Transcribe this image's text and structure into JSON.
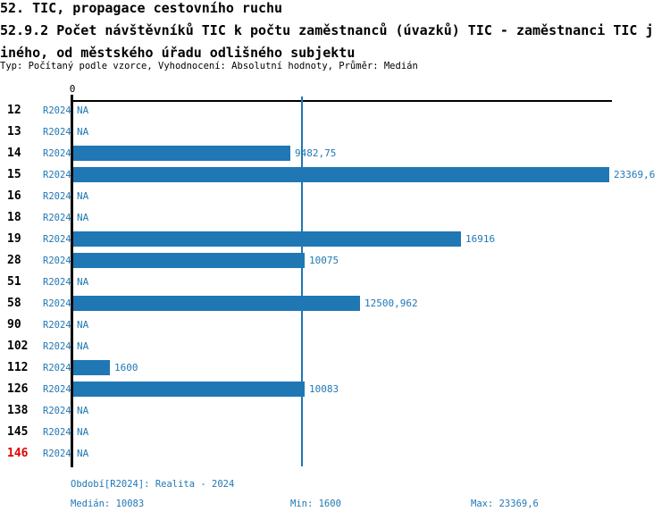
{
  "header": {
    "line1": "52. TIC, propagace cestovního ruchu",
    "line2": "52.9.2 Počet návštěvníků TIC k počtu zaměstnanců (úvazků) TIC - zaměstnanci TIC j",
    "line3": "iného, od městského úřadu odlišného subjektu",
    "meta": "Typ: Počítaný podle vzorce, Vyhodnocení: Absolutní hodnoty, Průměr: Medián"
  },
  "chart_data": {
    "type": "bar",
    "orientation": "horizontal",
    "title": "52.9.2 Počet návštěvníků TIC k počtu zaměstnanců (úvazků) TIC - zaměstnanci TIC jiného, od městského úřadu odlišného subjektu",
    "series_label": "R2024",
    "axis_zero_label": "0",
    "xlim": [
      0,
      23369.6
    ],
    "median_value": 10083,
    "na_text": "NA",
    "grid": false,
    "rows": [
      {
        "id": "12",
        "value": null,
        "label": "NA"
      },
      {
        "id": "13",
        "value": null,
        "label": "NA"
      },
      {
        "id": "14",
        "value": 9482.75,
        "label": "9482,75"
      },
      {
        "id": "15",
        "value": 23369.6,
        "label": "23369,6"
      },
      {
        "id": "16",
        "value": null,
        "label": "NA"
      },
      {
        "id": "18",
        "value": null,
        "label": "NA"
      },
      {
        "id": "19",
        "value": 16916,
        "label": "16916"
      },
      {
        "id": "28",
        "value": 10075,
        "label": "10075"
      },
      {
        "id": "51",
        "value": null,
        "label": "NA"
      },
      {
        "id": "58",
        "value": 12500.962,
        "label": "12500,962"
      },
      {
        "id": "90",
        "value": null,
        "label": "NA"
      },
      {
        "id": "102",
        "value": null,
        "label": "NA"
      },
      {
        "id": "112",
        "value": 1600,
        "label": "1600"
      },
      {
        "id": "126",
        "value": 10083,
        "label": "10083"
      },
      {
        "id": "138",
        "value": null,
        "label": "NA"
      },
      {
        "id": "145",
        "value": null,
        "label": "NA"
      },
      {
        "id": "146",
        "value": null,
        "label": "NA",
        "id_color": "#e00000"
      }
    ]
  },
  "footer": {
    "period": "Období[R2024]: Realita - 2024",
    "median": "Medián: 10083",
    "min": "Min: 1600",
    "max": "Max: 23369,6"
  },
  "colors": {
    "accent": "#1f77b4",
    "bar": "#1f77b4",
    "text_blue": "#1f77b4",
    "axis_black": "#000000",
    "highlight_row_id": "#e00000"
  }
}
